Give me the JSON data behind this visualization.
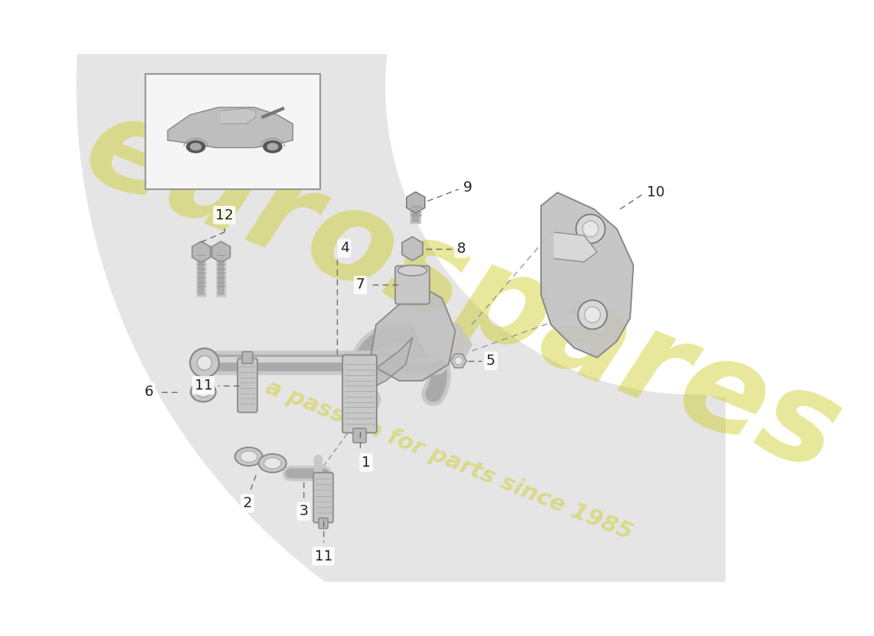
{
  "bg": "#ffffff",
  "watermark1": "eurospares",
  "watermark2": "a passion for parts since 1985",
  "wm_color": "#cccc22",
  "wm_alpha": 0.45,
  "part_gray": "#c8c8c8",
  "part_dark": "#888888",
  "part_light": "#e8e8e8",
  "label_color": "#222222",
  "dash_color": "#666666",
  "car_box_edge": "#999999",
  "car_box_fill": "#f5f5f5",
  "arc_color": "#cccccc",
  "arc_alpha": 0.5,
  "figsize": [
    11.0,
    8.0
  ],
  "dpi": 100
}
